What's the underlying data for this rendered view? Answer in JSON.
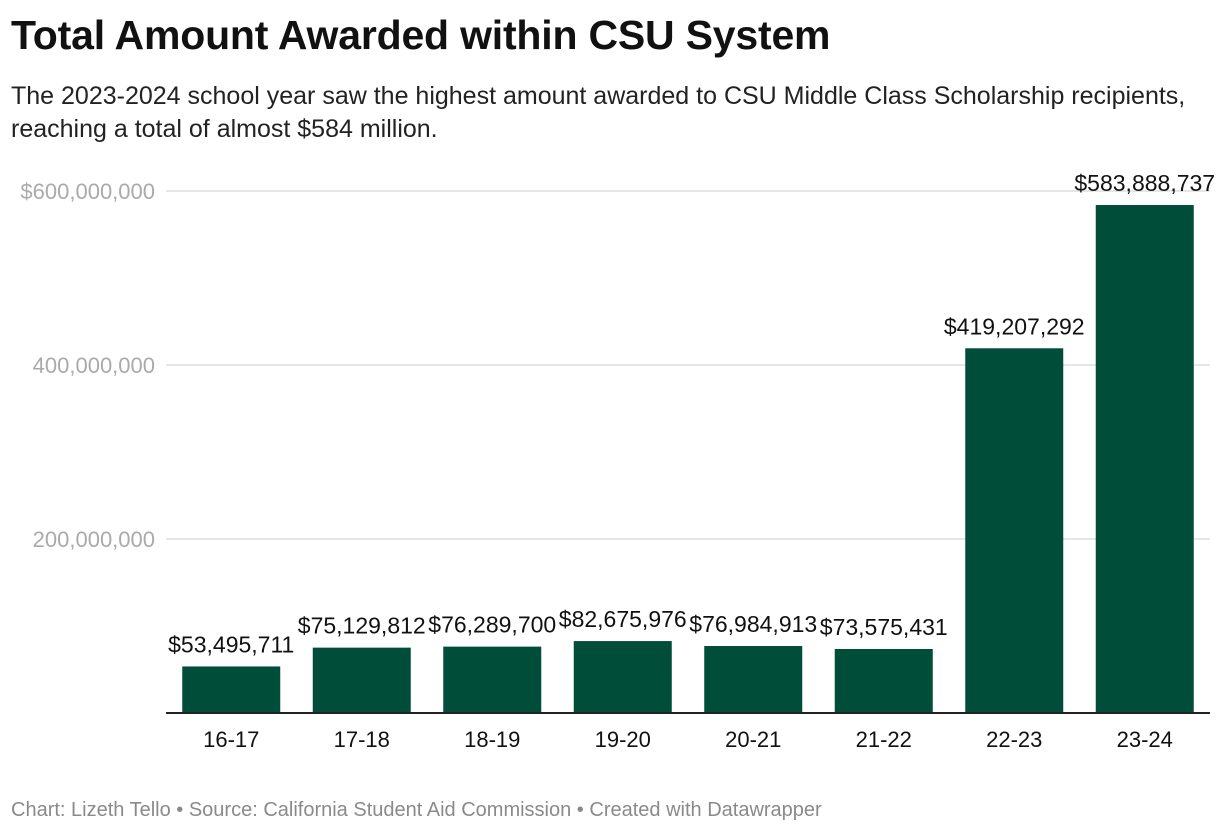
{
  "header": {
    "title": "Total Amount Awarded within CSU System",
    "subtitle": "The 2023-2024 school year saw the highest amount awarded to CSU Middle Class Scholarship recipients, reaching a total of almost $584 million."
  },
  "footer": {
    "credit": "Chart: Lizeth Tello",
    "separator": " • ",
    "source": "Source: California Student Aid Commission",
    "tool": "Created with Datawrapper"
  },
  "colors": {
    "bar": "#004d3a",
    "gridline": "#dddddd",
    "axis": "#222222",
    "tick_label": "#aaaaaa"
  },
  "chart_data": {
    "type": "bar",
    "title": "Total Amount Awarded within CSU System",
    "xlabel": "",
    "ylabel": "",
    "categories": [
      "16-17",
      "17-18",
      "18-19",
      "19-20",
      "20-21",
      "21-22",
      "22-23",
      "23-24"
    ],
    "values": [
      53495711,
      75129812,
      76289700,
      82675976,
      76984913,
      73575431,
      419207292,
      583888737
    ],
    "data_labels": [
      "$53,495,711",
      "$75,129,812",
      "$76,289,700",
      "$82,675,976",
      "$76,984,913",
      "$73,575,431",
      "$419,207,292",
      "$583,888,737"
    ],
    "ylim": [
      0,
      600000000
    ],
    "yticks": [
      200000000,
      400000000,
      600000000
    ],
    "ytick_labels": [
      "200,000,000",
      "400,000,000",
      "$600,000,000"
    ],
    "grid": true,
    "legend": "none"
  }
}
